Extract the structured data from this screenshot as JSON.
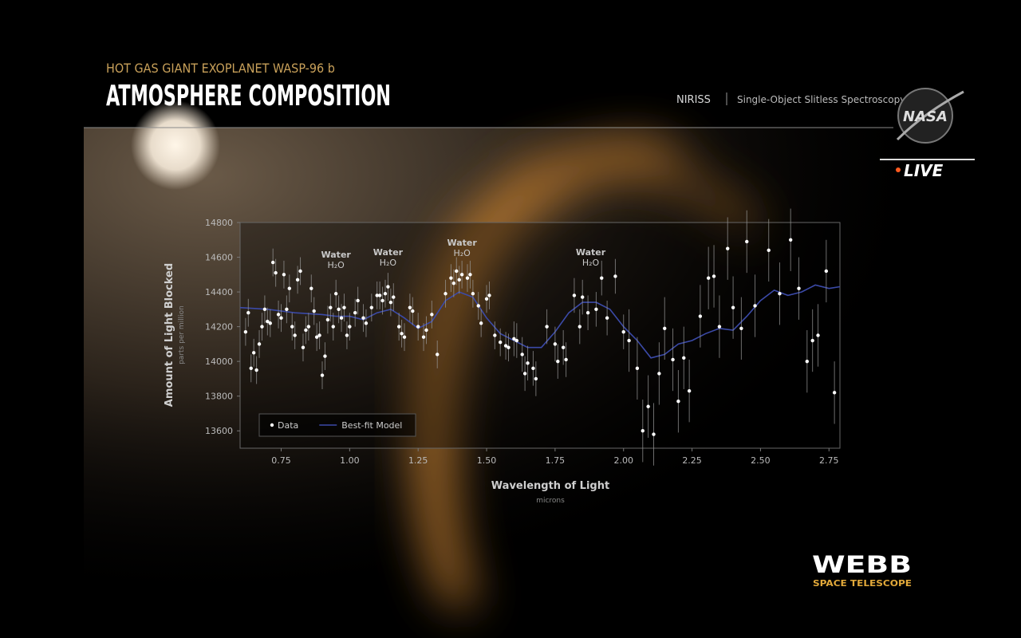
{
  "overlay": {
    "subtitle": "HOT GAS GIANT EXOPLANET WASP-96 b",
    "title": "ATMOSPHERE COMPOSITION",
    "instrument": "NIRISS",
    "mode": "Single-Object Slitless Spectroscopy",
    "agency": "NASA",
    "live": "LIVE",
    "brand": "WEBB",
    "brand_sub": "SPACE TELESCOPE"
  },
  "chart_data": {
    "type": "scatter",
    "y_label": "Amount of Light Blocked",
    "y_unit": "parts per million",
    "x_label": "Wavelength of Light",
    "x_unit": "microns",
    "xlim": [
      0.6,
      2.79
    ],
    "ylim": [
      13500,
      14800
    ],
    "xticks": [
      0.75,
      {
        "value": 1,
        "label": "1.00"
      },
      1.25,
      {
        "value": 1.5,
        "label": "1.50"
      },
      1.75,
      {
        "value": 2,
        "label": "2.00"
      },
      2.25,
      {
        "value": 2.5,
        "label": "2.50"
      },
      2.75
    ],
    "yticks": [
      13600,
      13800,
      14000,
      14200,
      14400,
      14600,
      14800
    ],
    "legend": "lower-left",
    "annotations": [
      {
        "x": 0.95,
        "label": "Water",
        "formula": "H₂O"
      },
      {
        "x": 1.14,
        "label": "Water",
        "formula": "H₂O"
      },
      {
        "x": 1.41,
        "label": "Water",
        "formula": "H₂O"
      },
      {
        "x": 1.88,
        "label": "Water",
        "formula": "H₂O"
      }
    ],
    "series": [
      {
        "name": "Data",
        "type": "scatter",
        "color": "#ffffff",
        "x": [
          0.62,
          0.63,
          0.64,
          0.65,
          0.66,
          0.67,
          0.68,
          0.69,
          0.7,
          0.71,
          0.72,
          0.73,
          0.74,
          0.75,
          0.76,
          0.77,
          0.78,
          0.79,
          0.8,
          0.81,
          0.82,
          0.83,
          0.84,
          0.85,
          0.86,
          0.87,
          0.88,
          0.89,
          0.9,
          0.91,
          0.92,
          0.93,
          0.94,
          0.95,
          0.96,
          0.97,
          0.98,
          0.99,
          1.0,
          1.02,
          1.03,
          1.05,
          1.06,
          1.08,
          1.1,
          1.11,
          1.12,
          1.13,
          1.14,
          1.15,
          1.16,
          1.18,
          1.19,
          1.2,
          1.22,
          1.23,
          1.25,
          1.27,
          1.28,
          1.3,
          1.32,
          1.35,
          1.37,
          1.38,
          1.39,
          1.4,
          1.41,
          1.43,
          1.44,
          1.45,
          1.47,
          1.48,
          1.5,
          1.51,
          1.53,
          1.55,
          1.57,
          1.58,
          1.6,
          1.61,
          1.63,
          1.64,
          1.65,
          1.67,
          1.68,
          1.72,
          1.75,
          1.76,
          1.78,
          1.79,
          1.82,
          1.84,
          1.85,
          1.87,
          1.9,
          1.92,
          1.94,
          1.97,
          2.0,
          2.02,
          2.05,
          2.07,
          2.09,
          2.11,
          2.13,
          2.15,
          2.18,
          2.2,
          2.22,
          2.24,
          2.28,
          2.31,
          2.33,
          2.35,
          2.38,
          2.4,
          2.43,
          2.45,
          2.48,
          2.53,
          2.57,
          2.61,
          2.64,
          2.67,
          2.69,
          2.71,
          2.74,
          2.77
        ],
        "values": [
          14170,
          14280,
          13960,
          14050,
          13950,
          14100,
          14200,
          14300,
          14230,
          14220,
          14570,
          14510,
          14270,
          14250,
          14500,
          14300,
          14420,
          14200,
          14150,
          14470,
          14520,
          14080,
          14180,
          14200,
          14420,
          14290,
          14140,
          14150,
          13920,
          14030,
          14240,
          14310,
          14200,
          14390,
          14300,
          14250,
          14310,
          14150,
          14200,
          14280,
          14350,
          14250,
          14220,
          14310,
          14380,
          14380,
          14350,
          14390,
          14430,
          14340,
          14370,
          14200,
          14160,
          14140,
          14310,
          14290,
          14200,
          14140,
          14180,
          14270,
          14040,
          14390,
          14480,
          14450,
          14520,
          14470,
          14500,
          14480,
          14500,
          14390,
          14320,
          14220,
          14360,
          14380,
          14150,
          14110,
          14090,
          14080,
          14130,
          14120,
          14040,
          13930,
          13990,
          13960,
          13900,
          14200,
          14100,
          14000,
          14080,
          14010,
          14380,
          14200,
          14370,
          14280,
          14300,
          14480,
          14250,
          14490,
          14170,
          14120,
          13960,
          13600,
          13740,
          13580,
          13930,
          14190,
          14010,
          13770,
          14020,
          13830,
          14260,
          14480,
          14490,
          14200,
          14650,
          14310,
          14190,
          14690,
          14320,
          14640,
          14390,
          14700,
          14420,
          14000,
          14120,
          14150,
          14520,
          13820
        ],
        "errors": [
          80,
          80,
          80,
          80,
          80,
          80,
          80,
          80,
          80,
          80,
          80,
          80,
          80,
          80,
          80,
          80,
          80,
          80,
          80,
          80,
          80,
          80,
          80,
          80,
          80,
          80,
          80,
          80,
          80,
          80,
          80,
          80,
          80,
          80,
          80,
          80,
          80,
          80,
          80,
          80,
          80,
          80,
          80,
          80,
          80,
          80,
          80,
          80,
          80,
          80,
          80,
          80,
          80,
          80,
          80,
          80,
          80,
          80,
          80,
          80,
          80,
          80,
          80,
          80,
          80,
          80,
          80,
          80,
          80,
          80,
          80,
          80,
          80,
          80,
          80,
          80,
          80,
          80,
          100,
          100,
          100,
          100,
          100,
          100,
          100,
          100,
          100,
          100,
          100,
          100,
          100,
          100,
          100,
          100,
          100,
          100,
          100,
          100,
          100,
          180,
          180,
          180,
          180,
          180,
          180,
          180,
          180,
          180,
          180,
          180,
          180,
          180,
          180,
          180,
          180,
          180,
          180,
          180,
          180,
          180,
          180,
          180,
          180,
          180,
          180,
          180,
          180,
          180
        ]
      },
      {
        "name": "Best-fit Model",
        "type": "line",
        "color": "#3b4aa8",
        "x": [
          0.6,
          0.7,
          0.8,
          0.9,
          0.95,
          1.0,
          1.05,
          1.1,
          1.15,
          1.2,
          1.25,
          1.3,
          1.35,
          1.4,
          1.45,
          1.5,
          1.55,
          1.6,
          1.65,
          1.7,
          1.75,
          1.8,
          1.85,
          1.9,
          1.95,
          2.0,
          2.05,
          2.1,
          2.15,
          2.2,
          2.25,
          2.3,
          2.35,
          2.4,
          2.45,
          2.5,
          2.55,
          2.6,
          2.65,
          2.7,
          2.75,
          2.79
        ],
        "values": [
          14310,
          14300,
          14280,
          14270,
          14260,
          14260,
          14240,
          14280,
          14300,
          14250,
          14190,
          14230,
          14350,
          14400,
          14370,
          14250,
          14160,
          14120,
          14080,
          14080,
          14170,
          14280,
          14340,
          14340,
          14300,
          14200,
          14120,
          14020,
          14040,
          14100,
          14120,
          14160,
          14190,
          14180,
          14260,
          14350,
          14410,
          14380,
          14400,
          14440,
          14420,
          14430
        ]
      }
    ]
  }
}
